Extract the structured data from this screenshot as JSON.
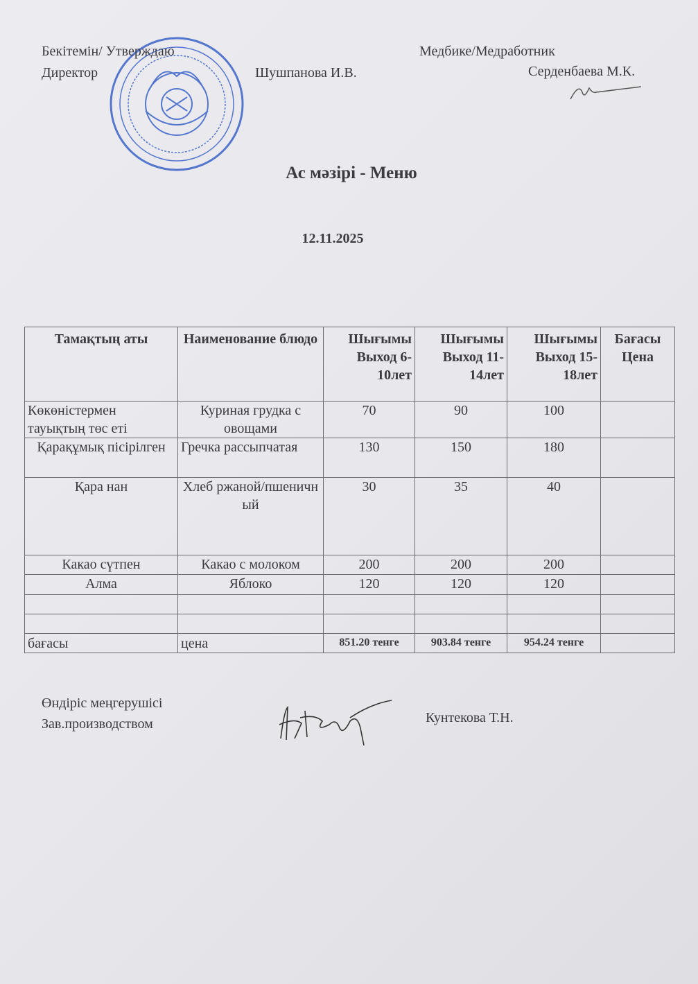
{
  "header": {
    "approve_label": "Бекітемін/ Утверждаю",
    "director_label": "Директор",
    "director_name": "Шушпанова И.В.",
    "medic_label": "Медбике/Медработник",
    "medic_name": "Серденбаева М.К."
  },
  "title": "Ас мәзірі  - Меню",
  "date": "12.11.2025",
  "table": {
    "headers": [
      "Тамақтың  аты",
      "Наименование блюдо",
      "Шығымы Выход 6-10лет",
      "Шығымы Выход 11-14лет",
      "Шығымы Выход 15-18лет",
      "Бағасы Цена"
    ],
    "rows": [
      {
        "kz": "Көкөністермен тауықтың төс еті",
        "ru": "Куриная грудка с овощами",
        "v1": "70",
        "v2": "90",
        "v3": "100",
        "price": ""
      },
      {
        "kz": "Қарақұмық пісірілген",
        "ru": "Гречка рассыпчатая",
        "v1": "130",
        "v2": "150",
        "v3": "180",
        "price": ""
      },
      {
        "kz": "Қара нан",
        "ru": "Хлеб ржаной/пшеничный",
        "v1": "30",
        "v2": "35",
        "v3": "40",
        "price": ""
      },
      {
        "kz": "Какао сүтпен",
        "ru": "Какао с молоком",
        "v1": "200",
        "v2": "200",
        "v3": "200",
        "price": ""
      },
      {
        "kz": "Алма",
        "ru": "Яблоко",
        "v1": "120",
        "v2": "120",
        "v3": "120",
        "price": ""
      }
    ],
    "total": {
      "kz": "бағасы",
      "ru": "цена",
      "v1": "851.20 тенге",
      "v2": "903.84 тенге",
      "v3": "954.24 тенге"
    }
  },
  "footer": {
    "role_kz": "Өндіріс  меңгерушісі",
    "role_ru": "Зав.производством",
    "name": "Кунтекова Т.Н."
  },
  "colors": {
    "stamp": "#3a63c8",
    "ink": "#3a3a40"
  }
}
